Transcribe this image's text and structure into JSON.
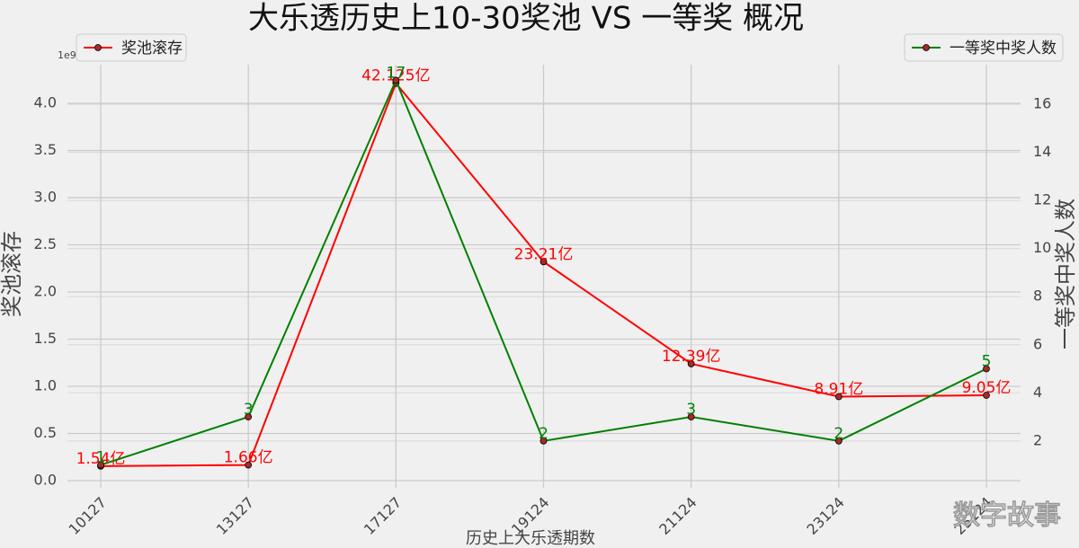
{
  "chart_data": {
    "type": "line",
    "title": "大乐透历史上10-30奖池 VS 一等奖 概况",
    "xlabel": "历史上大乐透期数",
    "ylabel": "奖池滚存",
    "y2label": "一等奖中奖人数",
    "y_offset_label": "1e9",
    "watermark": "数字故事",
    "categories": [
      "10127",
      "13127",
      "17127",
      "19124",
      "21124",
      "23124",
      "25124"
    ],
    "series": [
      {
        "name": "奖池滚存",
        "color": "#ff0000",
        "axis": "y",
        "legend": "upper left",
        "values": [
          0.154,
          0.166,
          4.2125,
          2.321,
          1.239,
          0.891,
          0.905
        ],
        "value_labels": [
          "1.54亿",
          "1.66亿",
          "42.125亿",
          "23.21亿",
          "12.39亿",
          "8.91亿",
          "9.05亿"
        ]
      },
      {
        "name": "一等奖中奖人数",
        "color": "#008000",
        "axis": "y2",
        "legend": "upper right",
        "values": [
          1,
          3,
          17,
          2,
          3,
          2,
          5
        ]
      }
    ],
    "ylim": [
      -0.076,
      4.41
    ],
    "yticks": [
      {
        "value": 0,
        "label": "0.0"
      },
      0.5,
      {
        "value": 1,
        "label": "1.0"
      },
      1.5,
      {
        "value": 2,
        "label": "2.0"
      },
      2.5,
      {
        "value": 3,
        "label": "3.0"
      },
      3.5,
      {
        "value": 4,
        "label": "4.0"
      }
    ],
    "y2lim": [
      0.05,
      17.65
    ],
    "y2ticks": [
      2,
      4,
      6,
      8,
      10,
      12,
      14,
      16
    ],
    "grid": true
  }
}
